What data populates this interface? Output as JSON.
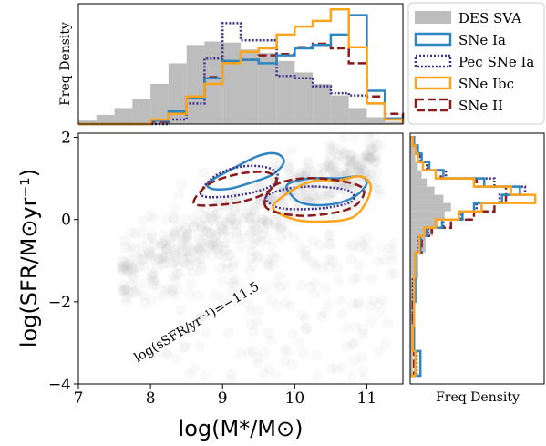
{
  "chart_data": {
    "type": "scatter",
    "title": "",
    "main": {
      "xlabel": "log(M*/M⊙)",
      "ylabel": "log(SFR/M⊙yr⁻¹)",
      "xlim": [
        7.0,
        11.5
      ],
      "ylim": [
        -4.0,
        2.1
      ],
      "xticks": [
        "7",
        "8",
        "9",
        "10",
        "11"
      ],
      "yticks": [
        "−4",
        "−2",
        "0",
        "2"
      ],
      "annotation": {
        "text": "log(sSFR/yr⁻¹)=−11.5",
        "line_ssfr": -11.5
      }
    },
    "top_panel": {
      "ylabel": "Freq Density"
    },
    "right_panel": {
      "xlabel": "Freq Density"
    },
    "legend": {
      "position": "top-right",
      "entries": [
        {
          "label": "DES SVA",
          "style": "fill",
          "color": "#bdbdbd"
        },
        {
          "label": "SNe Ia",
          "style": "solid",
          "color": "#2e86c1"
        },
        {
          "label": "Pec SNe Ia",
          "style": "dotted",
          "color": "#3c2e8c"
        },
        {
          "label": "SNe Ibc",
          "style": "solid",
          "color": "#ffa31a"
        },
        {
          "label": "SNe II",
          "style": "dashed",
          "color": "#8b1a1a"
        }
      ]
    },
    "mass_bins": [
      7.0,
      7.25,
      7.5,
      7.75,
      8.0,
      8.25,
      8.5,
      8.75,
      9.0,
      9.25,
      9.5,
      9.75,
      10.0,
      10.25,
      10.5,
      10.75,
      11.0,
      11.25,
      11.5
    ],
    "mass_hist": {
      "DES SVA": [
        0.03,
        0.08,
        0.14,
        0.22,
        0.35,
        0.53,
        0.69,
        0.72,
        0.71,
        0.65,
        0.62,
        0.55,
        0.45,
        0.35,
        0.25,
        0.14,
        0.06,
        0.02
      ],
      "SNe Ia": [
        0,
        0,
        0,
        0,
        0.03,
        0.11,
        0.23,
        0.4,
        0.55,
        0.56,
        0.53,
        0.6,
        0.66,
        0.69,
        0.78,
        0.95,
        0.29,
        0.05
      ],
      "Pec SNe Ia": [
        0,
        0,
        0,
        0,
        0,
        0.04,
        0.18,
        0.57,
        0.88,
        0.73,
        0.73,
        0.42,
        0.4,
        0.33,
        0.27,
        0.25,
        0.18,
        0.04
      ],
      "SNe Ibc": [
        0,
        0,
        0,
        0,
        0.04,
        0.09,
        0.24,
        0.35,
        0.53,
        0.63,
        0.66,
        0.78,
        0.85,
        0.9,
        1.0,
        0.67,
        0.18,
        0.04
      ],
      "SNe II": [
        0,
        0,
        0,
        0,
        0.02,
        0.09,
        0.24,
        0.41,
        0.54,
        0.56,
        0.6,
        0.61,
        0.67,
        0.7,
        0.66,
        0.53,
        0.24,
        0.09
      ]
    },
    "sfr_bins": [
      -3.8,
      -3.2,
      -2.6,
      -2.0,
      -1.4,
      -0.8,
      -0.4,
      -0.2,
      0.0,
      0.2,
      0.4,
      0.6,
      0.8,
      1.0,
      1.2,
      1.4,
      1.6,
      1.8,
      2.0
    ],
    "sfr_hist": {
      "DES SVA": [
        0.02,
        0.02,
        0.03,
        0.04,
        0.06,
        0.12,
        0.18,
        0.22,
        0.27,
        0.32,
        0.26,
        0.19,
        0.13,
        0.09,
        0.06,
        0.04,
        0.03,
        0.02
      ],
      "SNe Ia": [
        0.08,
        0.03,
        0.03,
        0.04,
        0.05,
        0.08,
        0.13,
        0.25,
        0.41,
        0.5,
        0.72,
        0.86,
        0.58,
        0.26,
        0.15,
        0.09,
        0.06,
        0.03
      ],
      "Pec SNe Ia": [
        0.05,
        0.02,
        0.02,
        0.02,
        0.04,
        0.06,
        0.14,
        0.26,
        0.4,
        0.52,
        0.7,
        0.9,
        0.66,
        0.28,
        0.13,
        0.08,
        0.05,
        0.03
      ],
      "SNe Ibc": [
        0.04,
        0.02,
        0.03,
        0.03,
        0.04,
        0.07,
        0.11,
        0.2,
        0.38,
        0.56,
        0.98,
        0.79,
        0.5,
        0.2,
        0.1,
        0.06,
        0.04,
        0.02
      ],
      "SNe II": [
        0.03,
        0.02,
        0.02,
        0.03,
        0.05,
        0.09,
        0.17,
        0.32,
        0.5,
        0.66,
        0.75,
        0.75,
        0.52,
        0.24,
        0.14,
        0.08,
        0.05,
        0.03
      ]
    },
    "contours": {
      "SNe Ia": [
        [
          [
            8.8,
            0.9
          ],
          [
            9.1,
            1.2
          ],
          [
            9.5,
            1.55
          ],
          [
            9.75,
            1.6
          ],
          [
            9.85,
            1.4
          ],
          [
            9.7,
            1.1
          ],
          [
            9.4,
            0.9
          ],
          [
            9.1,
            0.75
          ],
          [
            8.85,
            0.75
          ]
        ],
        [
          [
            9.9,
            0.85
          ],
          [
            10.2,
            1.0
          ],
          [
            10.6,
            1.0
          ],
          [
            10.9,
            1.05
          ],
          [
            11.0,
            0.9
          ],
          [
            10.9,
            0.65
          ],
          [
            10.7,
            0.45
          ],
          [
            10.4,
            0.35
          ],
          [
            10.1,
            0.4
          ],
          [
            9.95,
            0.6
          ]
        ]
      ],
      "Pec SNe Ia": [
        [
          [
            8.7,
            0.6
          ],
          [
            8.85,
            1.0
          ],
          [
            9.15,
            1.25
          ],
          [
            9.5,
            1.3
          ],
          [
            9.75,
            1.15
          ],
          [
            9.7,
            0.85
          ],
          [
            9.4,
            0.65
          ],
          [
            9.0,
            0.55
          ]
        ],
        [
          [
            9.6,
            0.55
          ],
          [
            9.9,
            0.75
          ],
          [
            10.3,
            0.8
          ],
          [
            10.75,
            0.7
          ],
          [
            10.8,
            0.45
          ],
          [
            10.5,
            0.3
          ],
          [
            10.1,
            0.25
          ],
          [
            9.75,
            0.3
          ]
        ]
      ],
      "SNe Ibc": [
        [
          [
            9.7,
            0.3
          ],
          [
            10.0,
            0.75
          ],
          [
            10.3,
            0.95
          ],
          [
            10.6,
            0.95
          ],
          [
            10.9,
            1.05
          ],
          [
            11.05,
            0.85
          ],
          [
            11.0,
            0.45
          ],
          [
            10.8,
            0.05
          ],
          [
            10.4,
            -0.05
          ],
          [
            10.0,
            0.0
          ]
        ]
      ],
      "SNe II": [
        [
          [
            8.6,
            0.4
          ],
          [
            8.8,
            0.85
          ],
          [
            9.2,
            1.1
          ],
          [
            9.6,
            1.15
          ],
          [
            9.75,
            0.95
          ],
          [
            9.6,
            0.65
          ],
          [
            9.3,
            0.45
          ],
          [
            8.9,
            0.35
          ]
        ],
        [
          [
            9.6,
            0.3
          ],
          [
            9.7,
            0.8
          ],
          [
            10.1,
            1.0
          ],
          [
            10.6,
            0.95
          ],
          [
            10.95,
            0.75
          ],
          [
            10.85,
            0.35
          ],
          [
            10.5,
            0.15
          ],
          [
            10.0,
            0.1
          ]
        ]
      ]
    }
  }
}
